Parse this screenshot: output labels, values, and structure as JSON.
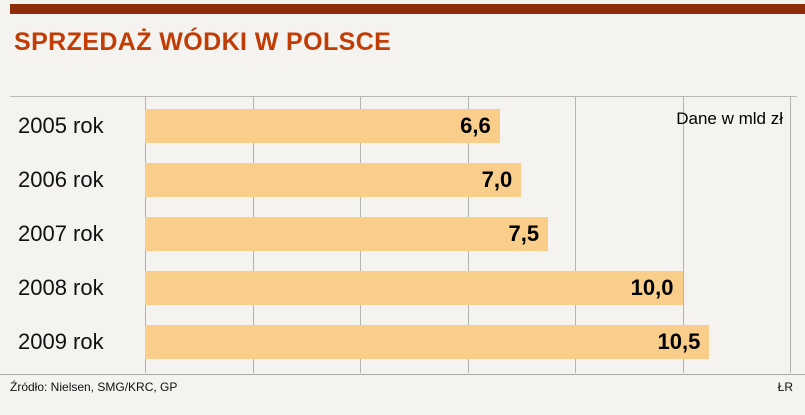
{
  "header": {
    "title": "SPRZEDAŻ WÓDKI W POLSCE",
    "accent_color": "#8e2d08",
    "title_color": "#c23c05"
  },
  "chart_data": {
    "type": "bar",
    "orientation": "horizontal",
    "title": "SPRZEDAŻ WÓDKI W POLSCE",
    "categories": [
      "2005 rok",
      "2006 rok",
      "2007 rok",
      "2008 rok",
      "2009 rok"
    ],
    "values": [
      6.6,
      7.0,
      7.5,
      10.0,
      10.5
    ],
    "value_labels": [
      "6,6",
      "7,0",
      "7,5",
      "10,0",
      "10,5"
    ],
    "unit_note": "Dane w mld zł",
    "xlabel": "",
    "ylabel": "",
    "xlim": [
      0,
      12
    ],
    "gridline_step": 2,
    "grid": true,
    "legend_position": "none",
    "bar_color": "#f9cd8a",
    "gridline_color": "#b2b2ae"
  },
  "footer": {
    "source": "Źródło: Nielsen, SMG/KRC, GP",
    "credit": "ŁR"
  }
}
